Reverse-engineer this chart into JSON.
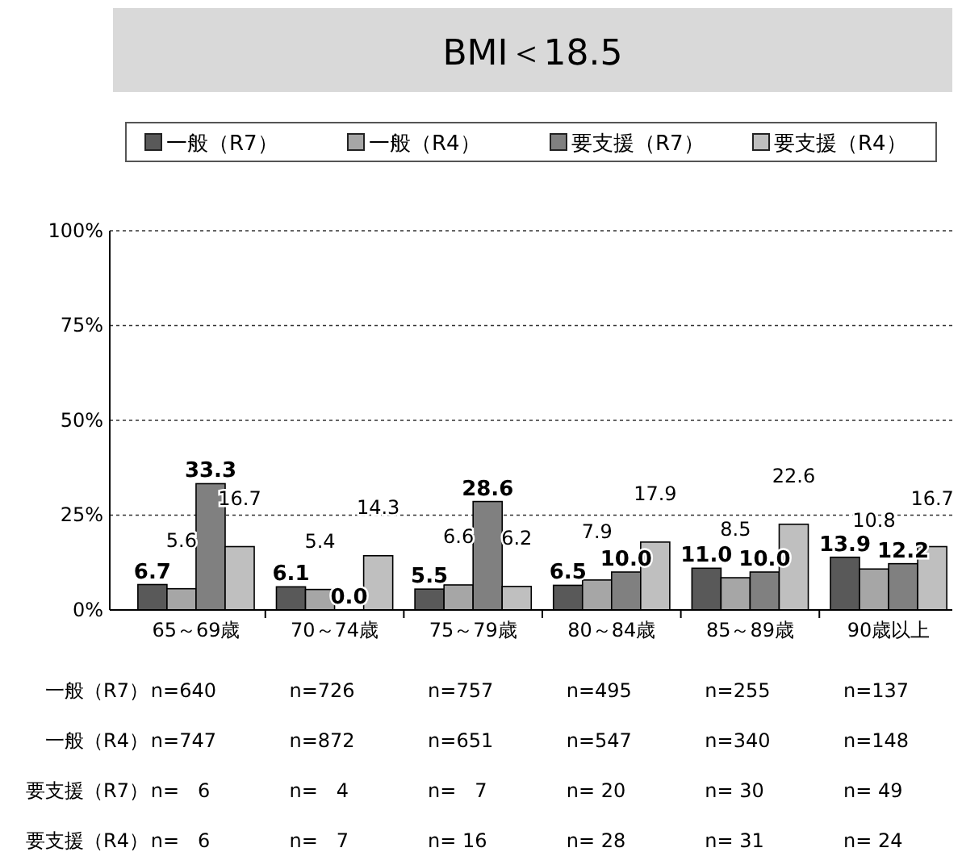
{
  "chart_data": {
    "type": "bar",
    "title": "BMI＜18.5",
    "categories": [
      "65～69歳",
      "70～74歳",
      "75～79歳",
      "80～84歳",
      "85～89歳",
      "90歳以上"
    ],
    "series": [
      {
        "name": "一般（R7）",
        "color": "#595959",
        "values": [
          6.7,
          6.1,
          5.5,
          6.5,
          11.0,
          13.9
        ],
        "value_labels": [
          "6.7",
          "6.1",
          "5.5",
          "6.5",
          "11.0",
          "13.9"
        ]
      },
      {
        "name": "一般（R4）",
        "color": "#a6a6a6",
        "values": [
          5.6,
          5.4,
          6.6,
          7.9,
          8.5,
          10.8
        ],
        "value_labels": [
          "5.6",
          "5.4",
          "6.6",
          "7.9",
          "8.5",
          "10.8"
        ]
      },
      {
        "name": "要支援（R7）",
        "color": "#808080",
        "values": [
          33.3,
          0.0,
          28.6,
          10.0,
          10.0,
          12.2
        ],
        "value_labels": [
          "33.3",
          "0.0",
          "28.6",
          "10.0",
          "10.0",
          "12.2"
        ]
      },
      {
        "name": "要支援（R4）",
        "color": "#bfbfbf",
        "values": [
          16.7,
          14.3,
          6.2,
          17.9,
          22.6,
          16.7
        ],
        "value_labels": [
          "16.7",
          "14.3",
          "6.2",
          "17.9",
          "22.6",
          "16.7"
        ]
      }
    ],
    "ylim": [
      0,
      100
    ],
    "yticks": [
      {
        "value": 0,
        "label": "0%"
      },
      {
        "value": 25,
        "label": "25%"
      },
      {
        "value": 50,
        "label": "50%"
      },
      {
        "value": 75,
        "label": "75%"
      },
      {
        "value": 100,
        "label": "100%"
      }
    ],
    "grid": "y",
    "legend": "top",
    "annotations": [
      "一般（R7）",
      "n=640",
      "n=726",
      "n=757",
      "n=495",
      "n=255",
      "n=137",
      "一般（R4）",
      "n=747",
      "n=872",
      "n=651",
      "n=547",
      "n=340",
      "n=148",
      "要支援（R7）",
      "n=   6",
      "n=   4",
      "n=   7",
      "n= 20",
      "n= 30",
      "n= 49",
      "要支援（R4）",
      "n=   6",
      "n=   7",
      "n= 16",
      "n= 28",
      "n= 31",
      "n= 24"
    ]
  }
}
